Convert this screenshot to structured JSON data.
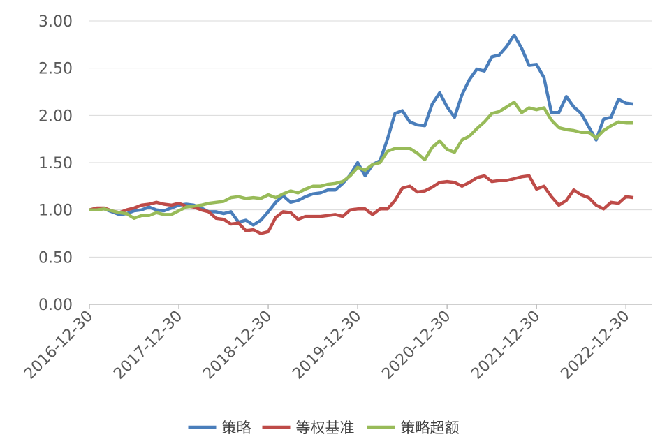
{
  "chart_data": {
    "type": "line",
    "categories": [
      "2016-12-30",
      null,
      null,
      null,
      null,
      null,
      null,
      null,
      null,
      null,
      null,
      null,
      "2017-12-30",
      null,
      null,
      null,
      null,
      null,
      null,
      null,
      null,
      null,
      null,
      null,
      "2018-12-30",
      null,
      null,
      null,
      null,
      null,
      null,
      null,
      null,
      null,
      null,
      null,
      "2019-12-30",
      null,
      null,
      null,
      null,
      null,
      null,
      null,
      null,
      null,
      null,
      null,
      "2020-12-30",
      null,
      null,
      null,
      null,
      null,
      null,
      null,
      null,
      null,
      null,
      null,
      "2021-12-30",
      null,
      null,
      null,
      null,
      null,
      null,
      null,
      null,
      null,
      null,
      null,
      "2022-12-30",
      null
    ],
    "series": [
      {
        "name": "策略",
        "color": "#4a7ebb",
        "values": [
          1.0,
          1.01,
          1.01,
          0.98,
          0.95,
          0.96,
          0.99,
          1.0,
          1.03,
          1.0,
          0.99,
          1.02,
          1.05,
          1.06,
          1.05,
          1.02,
          0.98,
          0.98,
          0.96,
          0.98,
          0.87,
          0.89,
          0.84,
          0.89,
          0.98,
          1.08,
          1.15,
          1.08,
          1.1,
          1.14,
          1.17,
          1.18,
          1.21,
          1.21,
          1.28,
          1.37,
          1.5,
          1.36,
          1.48,
          1.52,
          1.75,
          2.02,
          2.05,
          1.93,
          1.9,
          1.89,
          2.12,
          2.24,
          2.09,
          1.98,
          2.22,
          2.38,
          2.49,
          2.47,
          2.62,
          2.64,
          2.73,
          2.85,
          2.71,
          2.53,
          2.54,
          2.4,
          2.03,
          2.03,
          2.2,
          2.09,
          2.02,
          1.88,
          1.74,
          1.96,
          1.98,
          2.17,
          2.13,
          2.12
        ]
      },
      {
        "name": "等权基准",
        "color": "#be4b48",
        "values": [
          1.0,
          1.02,
          1.02,
          0.99,
          0.97,
          1.0,
          1.02,
          1.05,
          1.06,
          1.08,
          1.06,
          1.05,
          1.07,
          1.04,
          1.03,
          1.0,
          0.98,
          0.91,
          0.9,
          0.85,
          0.86,
          0.78,
          0.79,
          0.75,
          0.77,
          0.92,
          0.98,
          0.97,
          0.9,
          0.93,
          0.93,
          0.93,
          0.94,
          0.95,
          0.93,
          1.0,
          1.01,
          1.01,
          0.95,
          1.01,
          1.01,
          1.1,
          1.23,
          1.25,
          1.19,
          1.2,
          1.24,
          1.29,
          1.3,
          1.29,
          1.25,
          1.29,
          1.34,
          1.36,
          1.3,
          1.31,
          1.31,
          1.33,
          1.35,
          1.36,
          1.22,
          1.25,
          1.14,
          1.05,
          1.1,
          1.21,
          1.16,
          1.13,
          1.05,
          1.01,
          1.08,
          1.07,
          1.14,
          1.13
        ]
      },
      {
        "name": "策略超额",
        "color": "#98bb59",
        "values": [
          1.0,
          1.0,
          1.01,
          0.99,
          0.97,
          0.96,
          0.91,
          0.94,
          0.94,
          0.97,
          0.95,
          0.95,
          0.99,
          1.03,
          1.04,
          1.05,
          1.07,
          1.08,
          1.09,
          1.13,
          1.14,
          1.12,
          1.13,
          1.12,
          1.16,
          1.13,
          1.17,
          1.2,
          1.18,
          1.22,
          1.25,
          1.25,
          1.27,
          1.28,
          1.3,
          1.36,
          1.45,
          1.42,
          1.48,
          1.5,
          1.62,
          1.65,
          1.65,
          1.65,
          1.6,
          1.53,
          1.66,
          1.73,
          1.64,
          1.61,
          1.74,
          1.78,
          1.86,
          1.93,
          2.02,
          2.04,
          2.09,
          2.14,
          2.03,
          2.08,
          2.06,
          2.08,
          1.95,
          1.87,
          1.85,
          1.84,
          1.82,
          1.82,
          1.76,
          1.84,
          1.89,
          1.93,
          1.92,
          1.92
        ]
      }
    ],
    "ylim": [
      0,
      3
    ],
    "yticks": [
      {
        "value": 0,
        "label": "0.00"
      },
      {
        "value": 0.5,
        "label": "0.50"
      },
      {
        "value": 1,
        "label": "1.00"
      },
      {
        "value": 1.5,
        "label": "1.50"
      },
      {
        "value": 2,
        "label": "2.00"
      },
      {
        "value": 2.5,
        "label": "2.50"
      },
      {
        "value": 3,
        "label": "3.00"
      }
    ],
    "grid": true,
    "legend": "bottom"
  }
}
